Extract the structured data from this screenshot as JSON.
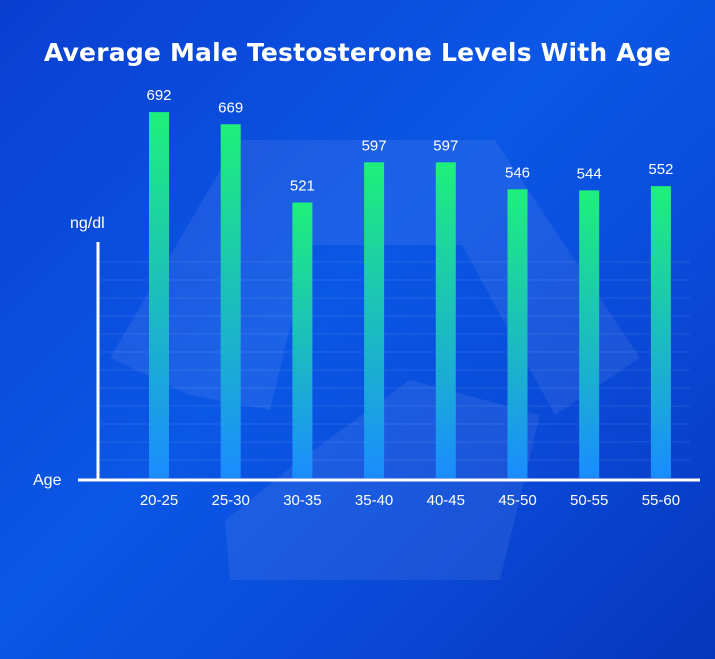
{
  "chart_data": {
    "type": "bar",
    "title": "Average Male Testosterone Levels With Age",
    "xlabel": "Age",
    "ylabel": "ng/dl",
    "categories": [
      "20-25",
      "25-30",
      "30-35",
      "35-40",
      "40-45",
      "45-50",
      "50-55",
      "55-60"
    ],
    "values": [
      692,
      669,
      521,
      597,
      597,
      546,
      544,
      552
    ],
    "ylim": [
      0,
      800
    ],
    "grid": true,
    "bar_color_top": "#1ef07a",
    "bar_color_bottom": "#1a8cff"
  },
  "colors": {
    "background": "#0b4fe0",
    "text": "#ffffff",
    "axis": "#ffffff"
  }
}
